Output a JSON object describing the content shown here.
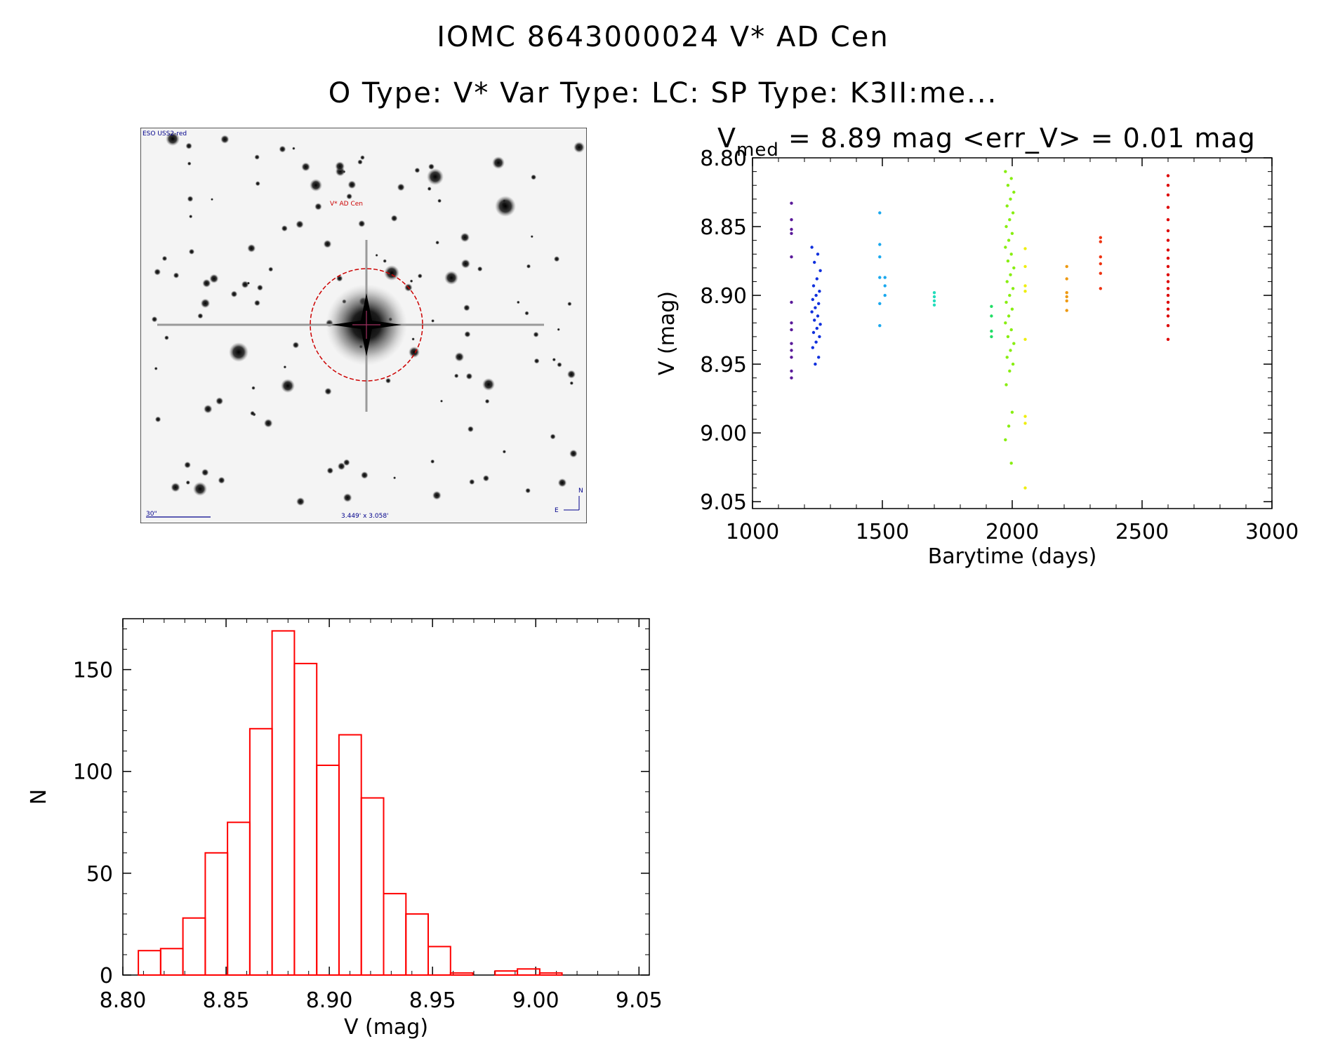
{
  "title_line1": "IOMC 8643000024    V* AD Cen",
  "title_line2": "O Type: V*  Var Type: LC:  SP Type: K3II:me...",
  "finder": {
    "survey_label": "ESO USS2-red",
    "object_label": "V* AD Cen",
    "scale_label": "30\"",
    "size_label": "3.449' x 3.058'",
    "north_label": "N",
    "east_label": "E"
  },
  "lightcurve": {
    "stat_v": "V",
    "stat_sub": "med",
    "stat_rest": " = 8.89 mag <err_V> = 0.01 mag",
    "colors": [
      "#5a1a9a",
      "#1030dd",
      "#1aa8ee",
      "#22ddbb",
      "#22dd66",
      "#88ee11",
      "#eeee11",
      "#ee9911",
      "#ee3311",
      "#dd0000"
    ],
    "chart_data": {
      "type": "scatter",
      "xlabel": "Barytime (days)",
      "ylabel": "V (mag)",
      "xlim": [
        1000,
        3000
      ],
      "ylim": [
        9.055,
        8.8
      ],
      "xticks": [
        "1000",
        "1500",
        "2000",
        "2500",
        "3000"
      ],
      "yticks": [
        "8.80",
        "8.85",
        "8.90",
        "8.95",
        "9.00",
        "9.05"
      ],
      "groups": [
        {
          "color": 0,
          "x": 1150,
          "y": [
            8.833,
            8.845,
            8.852,
            8.855,
            8.872,
            8.905,
            8.925,
            8.935,
            8.945,
            8.955,
            8.96,
            8.92,
            8.94
          ]
        },
        {
          "color": 1,
          "x": 1245,
          "y": [
            8.865,
            8.87,
            8.876,
            8.882,
            8.888,
            8.893,
            8.897,
            8.9,
            8.903,
            8.906,
            8.909,
            8.912,
            8.915,
            8.918,
            8.921,
            8.924,
            8.927,
            8.93,
            8.934,
            8.938,
            8.945,
            8.95
          ]
        },
        {
          "color": 2,
          "x": 1490,
          "y": [
            8.84,
            8.863,
            8.872,
            8.887,
            8.906,
            8.922
          ]
        },
        {
          "color": 2,
          "x": 1510,
          "y": [
            8.887,
            8.893,
            8.9
          ]
        },
        {
          "color": 3,
          "x": 1700,
          "y": [
            8.898,
            8.901,
            8.904,
            8.907
          ]
        },
        {
          "color": 4,
          "x": 1920,
          "y": [
            8.908,
            8.915,
            8.926,
            8.93
          ]
        },
        {
          "color": 5,
          "x": 1990,
          "y": [
            8.81,
            8.815,
            8.82,
            8.825,
            8.83,
            8.835,
            8.84,
            8.845,
            8.85,
            8.855,
            8.86,
            8.865,
            8.87,
            8.875,
            8.88,
            8.885,
            8.89,
            8.895,
            8.9,
            8.905,
            8.91,
            8.915,
            8.92,
            8.925,
            8.93,
            8.935,
            8.94,
            8.945,
            8.95,
            8.955,
            8.965,
            8.985,
            8.995,
            9.005,
            9.022
          ]
        },
        {
          "color": 6,
          "x": 2050,
          "y": [
            8.866,
            8.879,
            8.893,
            8.897,
            8.932,
            8.988,
            8.993,
            9.04
          ]
        },
        {
          "color": 7,
          "x": 2210,
          "y": [
            8.879,
            8.888,
            8.898,
            8.901,
            8.904,
            8.911
          ]
        },
        {
          "color": 8,
          "x": 2340,
          "y": [
            8.858,
            8.861,
            8.872,
            8.877,
            8.884,
            8.895
          ]
        },
        {
          "color": 9,
          "x": 2600,
          "y": [
            8.813,
            8.82,
            8.827,
            8.836,
            8.845,
            8.853,
            8.86,
            8.867,
            8.873,
            8.879,
            8.885,
            8.89,
            8.895,
            8.9,
            8.905,
            8.91,
            8.915,
            8.922,
            8.932
          ]
        }
      ]
    }
  },
  "histogram": {
    "color": "#ff0000",
    "chart_data": {
      "type": "bar",
      "xlabel": "V (mag)",
      "ylabel": "N",
      "xlim": [
        8.8,
        9.055
      ],
      "ylim": [
        0,
        175
      ],
      "xticks": [
        "8.80",
        "8.85",
        "8.90",
        "8.95",
        "9.00",
        "9.05"
      ],
      "yticks": [
        "0",
        "50",
        "100",
        "150"
      ],
      "bin_start": 8.8075,
      "bin_width": 0.0108,
      "values": [
        12,
        13,
        28,
        60,
        75,
        121,
        169,
        153,
        103,
        118,
        87,
        40,
        30,
        14,
        1,
        0,
        2,
        3,
        1,
        0,
        0,
        0,
        0
      ]
    }
  }
}
